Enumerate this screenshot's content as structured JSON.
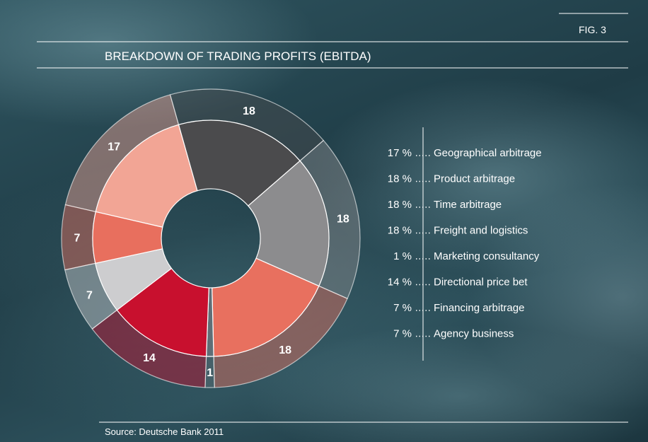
{
  "chart_data": {
    "type": "donut",
    "figure_label": "FIG. 3",
    "title": "BREAKDOWN OF TRADING PROFITS (EBITDA)",
    "source": "Source: Deutsche Bank 2011",
    "categories": [
      "Geographical arbitrage",
      "Product arbitrage",
      "Time arbitrage",
      "Freight and logistics",
      "Marketing consultancy",
      "Directional price bet",
      "Financing arbitrage",
      "Agency business"
    ],
    "values": [
      17,
      18,
      18,
      18,
      1,
      14,
      7,
      7
    ],
    "value_labels": [
      "17 %",
      "18 %",
      "18 %",
      "18 %",
      "1 %",
      "14 %",
      "7 %",
      "7 %"
    ],
    "colors": [
      "#f2a595",
      "#4b4b4d",
      "#8c8c8e",
      "#e8705f",
      "#5f6e76",
      "#c8102e",
      "#cdcdcf",
      "#e86f5e"
    ]
  }
}
